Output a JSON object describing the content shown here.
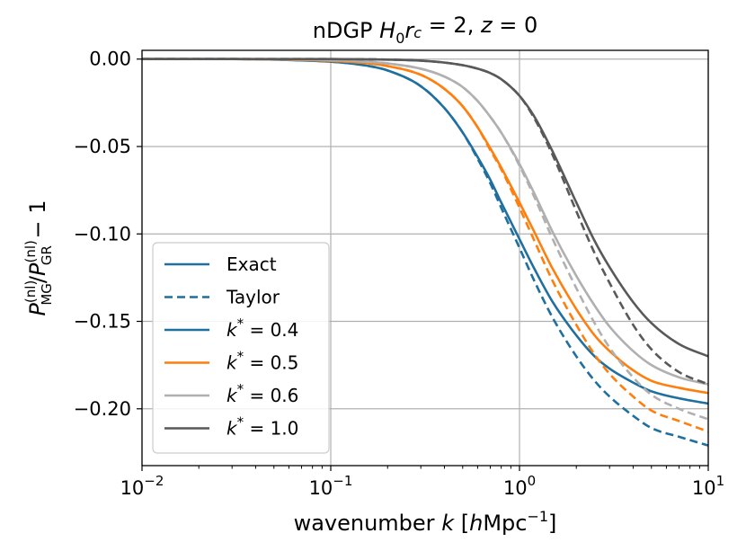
{
  "chart_data": {
    "type": "line",
    "title_parts": {
      "prefix": "nDGP ",
      "h": "H",
      "h_sub": "0",
      "r": "r",
      "r_sub": "c",
      "eq1": " = 2, ",
      "z": "z",
      "eq2": " = 0"
    },
    "xlabel_parts": {
      "prefix": "wavenumber ",
      "k": "k",
      "bracket_open": " [",
      "h": "h",
      "unit": "Mpc",
      "exp": "−1",
      "bracket_close": "]"
    },
    "ylabel_parts": {
      "P1": "P",
      "sup1": "(nl)",
      "sub1": "MG",
      "slash": "/",
      "P2": "P",
      "sup2": "(nl)",
      "sub2": "GR",
      "tail": " − 1"
    },
    "x_scale": "log",
    "xlim": [
      0.01,
      10
    ],
    "ylim": [
      -0.2325,
      0.005
    ],
    "x_ticks": [
      {
        "value": 0.01,
        "base": "10",
        "exp": "−2"
      },
      {
        "value": 0.1,
        "base": "10",
        "exp": "−1"
      },
      {
        "value": 1,
        "base": "10",
        "exp": "0"
      },
      {
        "value": 10,
        "base": "10",
        "exp": "1"
      }
    ],
    "y_ticks": [
      {
        "value": 0.0,
        "label": "0.00"
      },
      {
        "value": -0.05,
        "label": "−0.05"
      },
      {
        "value": -0.1,
        "label": "−0.10"
      },
      {
        "value": -0.15,
        "label": "−0.15"
      },
      {
        "value": -0.2,
        "label": "−0.20"
      }
    ],
    "grid": true,
    "legend_position": "lower-left",
    "legend": [
      {
        "label": "Exact",
        "style": "solid",
        "color": "#1f6f9f"
      },
      {
        "label": "Taylor",
        "style": "dashed",
        "color": "#1f6f9f"
      },
      {
        "label_k": "k",
        "label_star": "*",
        "label_val": " = 0.4",
        "style": "solid",
        "color": "#1f6f9f"
      },
      {
        "label_k": "k",
        "label_star": "*",
        "label_val": " = 0.5",
        "style": "solid",
        "color": "#ff7f0e"
      },
      {
        "label_k": "k",
        "label_star": "*",
        "label_val": " = 0.6",
        "style": "solid",
        "color": "#b0b0b0"
      },
      {
        "label_k": "k",
        "label_star": "*",
        "label_val": " = 1.0",
        "style": "solid",
        "color": "#595959"
      }
    ],
    "x": [
      0.01,
      0.03,
      0.05,
      0.1,
      0.15,
      0.2,
      0.3,
      0.4,
      0.5,
      0.6,
      0.7,
      0.8,
      1.0,
      1.2,
      1.5,
      2.0,
      2.5,
      3.0,
      4.0,
      5.0,
      7.0,
      10.0
    ],
    "series": [
      {
        "name": "k*=0.4 Exact",
        "color": "#1f6f9f",
        "style": "solid",
        "values": [
          0.0,
          0.0,
          -0.0003,
          -0.0015,
          -0.0035,
          -0.0065,
          -0.0155,
          -0.028,
          -0.042,
          -0.056,
          -0.069,
          -0.082,
          -0.103,
          -0.12,
          -0.139,
          -0.158,
          -0.17,
          -0.177,
          -0.185,
          -0.19,
          -0.194,
          -0.197
        ]
      },
      {
        "name": "k*=0.4 Taylor",
        "color": "#1f6f9f",
        "style": "dashed",
        "values": [
          0.0,
          0.0,
          -0.0003,
          -0.0015,
          -0.0035,
          -0.0065,
          -0.0155,
          -0.028,
          -0.042,
          -0.057,
          -0.071,
          -0.085,
          -0.108,
          -0.127,
          -0.148,
          -0.17,
          -0.184,
          -0.193,
          -0.204,
          -0.211,
          -0.216,
          -0.221
        ]
      },
      {
        "name": "k*=0.5 Exact",
        "color": "#ff7f0e",
        "style": "solid",
        "values": [
          0.0,
          0.0,
          -0.0002,
          -0.001,
          -0.0022,
          -0.004,
          -0.009,
          -0.017,
          -0.027,
          -0.039,
          -0.051,
          -0.062,
          -0.082,
          -0.099,
          -0.12,
          -0.143,
          -0.158,
          -0.167,
          -0.178,
          -0.184,
          -0.188,
          -0.191
        ]
      },
      {
        "name": "k*=0.5 Taylor",
        "color": "#ff7f0e",
        "style": "dashed",
        "values": [
          0.0,
          0.0,
          -0.0002,
          -0.001,
          -0.0022,
          -0.004,
          -0.009,
          -0.017,
          -0.027,
          -0.039,
          -0.052,
          -0.063,
          -0.085,
          -0.104,
          -0.127,
          -0.152,
          -0.169,
          -0.18,
          -0.193,
          -0.201,
          -0.207,
          -0.213
        ]
      },
      {
        "name": "k*=0.6 Exact",
        "color": "#b0b0b0",
        "style": "solid",
        "values": [
          0.0,
          0.0,
          -0.0001,
          -0.0006,
          -0.0014,
          -0.0025,
          -0.0055,
          -0.01,
          -0.016,
          -0.024,
          -0.033,
          -0.042,
          -0.06,
          -0.077,
          -0.099,
          -0.124,
          -0.141,
          -0.153,
          -0.167,
          -0.175,
          -0.182,
          -0.186
        ]
      },
      {
        "name": "k*=0.6 Taylor",
        "color": "#b0b0b0",
        "style": "dashed",
        "values": [
          0.0,
          0.0,
          -0.0001,
          -0.0006,
          -0.0014,
          -0.0025,
          -0.0055,
          -0.01,
          -0.016,
          -0.024,
          -0.033,
          -0.042,
          -0.061,
          -0.079,
          -0.103,
          -0.131,
          -0.151,
          -0.165,
          -0.182,
          -0.192,
          -0.2,
          -0.206
        ]
      },
      {
        "name": "k*=1.0 Exact",
        "color": "#595959",
        "style": "solid",
        "values": [
          0.0,
          0.0,
          0.0,
          0.0,
          -0.0001,
          -0.0003,
          -0.0009,
          -0.002,
          -0.0035,
          -0.0055,
          -0.008,
          -0.0115,
          -0.021,
          -0.033,
          -0.053,
          -0.082,
          -0.104,
          -0.119,
          -0.139,
          -0.151,
          -0.163,
          -0.17
        ]
      },
      {
        "name": "k*=1.0 Taylor",
        "color": "#595959",
        "style": "dashed",
        "values": [
          0.0,
          0.0,
          0.0,
          0.0,
          -0.0001,
          -0.0003,
          -0.0009,
          -0.002,
          -0.0035,
          -0.0055,
          -0.008,
          -0.0115,
          -0.021,
          -0.034,
          -0.055,
          -0.087,
          -0.111,
          -0.128,
          -0.152,
          -0.166,
          -0.179,
          -0.186
        ]
      }
    ]
  }
}
